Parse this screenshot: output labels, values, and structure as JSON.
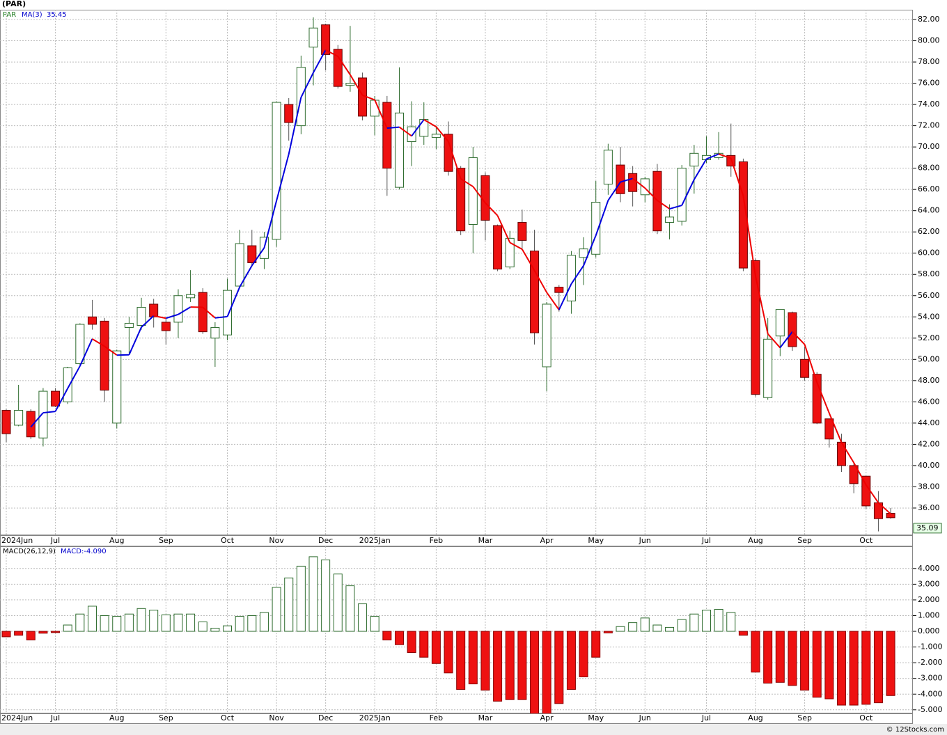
{
  "chart_data": [
    {
      "type": "candlestick",
      "title": "(PAR)",
      "name": "PAR",
      "categories": [
        "2024Jun",
        null,
        null,
        null,
        "Jul",
        null,
        null,
        null,
        null,
        "Aug",
        null,
        null,
        null,
        "Sep",
        null,
        null,
        null,
        null,
        "Oct",
        null,
        null,
        null,
        "Nov",
        null,
        null,
        null,
        "Dec",
        null,
        null,
        null,
        "2025Jan",
        null,
        null,
        null,
        null,
        "Feb",
        null,
        null,
        null,
        "Mar",
        null,
        null,
        null,
        null,
        "Apr",
        null,
        null,
        null,
        "May",
        null,
        null,
        null,
        "Jun",
        null,
        null,
        null,
        null,
        "Jul",
        null,
        null,
        null,
        "Aug",
        null,
        null,
        null,
        "Sep",
        null,
        null,
        null,
        null,
        "Oct",
        null,
        null
      ],
      "open": [
        45.2,
        43.8,
        45.1,
        42.6,
        47.0,
        46.0,
        49.6,
        54.0,
        53.6,
        44.0,
        53.0,
        53.2,
        55.2,
        53.5,
        53.5,
        55.8,
        56.3,
        52.0,
        52.3,
        56.9,
        60.7,
        59.5,
        61.3,
        74.0,
        72.0,
        79.4,
        81.5,
        79.2,
        75.8,
        76.5,
        72.9,
        74.2,
        66.2,
        70.5,
        71.0,
        70.9,
        71.2,
        68.0,
        62.7,
        67.3,
        62.6,
        58.7,
        62.9,
        60.2,
        49.3,
        56.8,
        55.5,
        59.6,
        59.9,
        66.5,
        68.3,
        67.5,
        65.5,
        67.7,
        62.9,
        63.0,
        68.2,
        68.8,
        69.0,
        69.2,
        68.6,
        59.3,
        46.4,
        52.2,
        54.4,
        50.0,
        48.6,
        44.4,
        42.2,
        40.0,
        39.0,
        36.5,
        35.5
      ],
      "high": [
        45.3,
        47.6,
        45.3,
        47.3,
        47.3,
        49.3,
        53.4,
        55.6,
        53.9,
        50.9,
        54.0,
        55.8,
        55.7,
        53.8,
        56.6,
        58.4,
        56.7,
        53.5,
        57.6,
        62.2,
        62.2,
        62.0,
        74.3,
        74.6,
        78.6,
        82.2,
        81.6,
        79.6,
        81.4,
        77.0,
        74.8,
        74.8,
        77.5,
        74.3,
        74.2,
        72.0,
        72.4,
        68.2,
        70.0,
        67.6,
        62.7,
        62.1,
        64.1,
        62.2,
        55.4,
        57.0,
        60.2,
        61.5,
        66.8,
        70.3,
        70.0,
        68.2,
        67.2,
        68.4,
        64.6,
        68.3,
        70.2,
        71.0,
        71.4,
        72.2,
        68.9,
        59.5,
        53.9,
        54.7,
        54.5,
        51.2,
        48.8,
        44.4,
        43.0,
        40.2,
        39.0,
        37.6,
        36.0
      ],
      "low": [
        42.2,
        43.7,
        42.5,
        41.8,
        45.5,
        45.8,
        49.5,
        52.8,
        46.0,
        43.5,
        50.6,
        52.8,
        53.0,
        51.4,
        52.0,
        55.4,
        52.4,
        49.3,
        51.8,
        56.7,
        58.8,
        58.5,
        60.6,
        70.6,
        71.2,
        75.8,
        77.2,
        75.5,
        75.2,
        72.5,
        71.1,
        65.4,
        66.0,
        68.2,
        70.2,
        69.8,
        67.3,
        61.7,
        60.0,
        61.2,
        58.3,
        58.5,
        60.4,
        51.4,
        47.0,
        54.5,
        54.3,
        57.0,
        59.6,
        65.5,
        64.8,
        64.4,
        64.8,
        61.8,
        61.3,
        62.6,
        65.6,
        68.5,
        68.8,
        67.2,
        58.3,
        46.5,
        46.2,
        50.3,
        50.8,
        48.0,
        43.9,
        41.7,
        39.4,
        37.4,
        35.9,
        33.8,
        35.0
      ],
      "close": [
        43.0,
        45.2,
        42.7,
        47.0,
        45.6,
        49.2,
        53.3,
        53.3,
        47.1,
        50.8,
        53.4,
        54.9,
        54.0,
        52.7,
        56.0,
        56.1,
        52.6,
        53.0,
        56.5,
        60.9,
        59.1,
        61.5,
        74.2,
        72.3,
        77.5,
        81.2,
        78.7,
        75.7,
        76.0,
        72.9,
        74.4,
        68.0,
        73.2,
        71.9,
        72.6,
        71.2,
        67.7,
        62.1,
        69.0,
        63.1,
        58.5,
        61.4,
        61.2,
        52.5,
        55.2,
        56.3,
        59.8,
        60.4,
        64.8,
        69.7,
        65.6,
        65.8,
        67.0,
        62.1,
        63.4,
        68.0,
        69.4,
        69.2,
        69.4,
        68.2,
        58.6,
        46.7,
        51.9,
        54.7,
        51.2,
        48.3,
        44.0,
        42.5,
        40.0,
        38.3,
        36.2,
        35.0,
        35.09
      ],
      "up_color": "#2d6b2d",
      "down_color": "#ee1111",
      "ma": {
        "name": "MA(3)",
        "up_color": "#0000dd",
        "down_color": "#ee0000",
        "values": [
          null,
          null,
          43.63,
          44.97,
          45.1,
          47.27,
          49.37,
          51.93,
          51.23,
          50.4,
          50.43,
          53.03,
          54.1,
          53.87,
          54.23,
          54.93,
          54.9,
          53.9,
          54.03,
          56.8,
          58.83,
          60.5,
          64.93,
          69.33,
          74.67,
          77.0,
          79.13,
          78.53,
          76.8,
          74.87,
          74.43,
          71.77,
          71.87,
          71.03,
          72.57,
          71.9,
          70.5,
          67.0,
          66.27,
          64.73,
          63.53,
          61.0,
          60.37,
          58.37,
          56.3,
          54.67,
          57.1,
          58.83,
          61.67,
          64.97,
          66.7,
          67.03,
          66.13,
          64.97,
          64.17,
          64.5,
          66.93,
          68.87,
          69.33,
          68.93,
          65.4,
          57.83,
          52.4,
          51.1,
          52.6,
          51.4,
          47.83,
          44.93,
          42.17,
          40.27,
          38.17,
          36.5,
          35.45
        ]
      },
      "ylim": [
        33.44,
        82.92
      ],
      "yticks": [
        {
          "value": 36,
          "label": "36.00"
        },
        {
          "value": 38,
          "label": "38.00"
        },
        {
          "value": 40,
          "label": "40.00"
        },
        {
          "value": 42,
          "label": "42.00"
        },
        {
          "value": 44,
          "label": "44.00"
        },
        {
          "value": 46,
          "label": "46.00"
        },
        {
          "value": 48,
          "label": "48.00"
        },
        {
          "value": 50,
          "label": "50.00"
        },
        {
          "value": 52,
          "label": "52.00"
        },
        {
          "value": 54,
          "label": "54.00"
        },
        {
          "value": 56,
          "label": "56.00"
        },
        {
          "value": 58,
          "label": "58.00"
        },
        {
          "value": 60,
          "label": "60.00"
        },
        {
          "value": 62,
          "label": "62.00"
        },
        {
          "value": 64,
          "label": "64.00"
        },
        {
          "value": 66,
          "label": "66.00"
        },
        {
          "value": 68,
          "label": "68.00"
        },
        {
          "value": 70,
          "label": "70.00"
        },
        {
          "value": 72,
          "label": "72.00"
        },
        {
          "value": 74,
          "label": "74.00"
        },
        {
          "value": 76,
          "label": "76.00"
        },
        {
          "value": 78,
          "label": "78.00"
        },
        {
          "value": 80,
          "label": "80.00"
        },
        {
          "value": 82,
          "label": "82.00"
        }
      ],
      "grid": true
    },
    {
      "type": "bar",
      "name": "MACD(26,12,9)",
      "readout": "MACD:-4.090",
      "categories": [
        "2024Jun",
        null,
        null,
        null,
        "Jul",
        null,
        null,
        null,
        null,
        "Aug",
        null,
        null,
        null,
        "Sep",
        null,
        null,
        null,
        null,
        "Oct",
        null,
        null,
        null,
        "Nov",
        null,
        null,
        null,
        "Dec",
        null,
        null,
        null,
        "2025Jan",
        null,
        null,
        null,
        null,
        "Feb",
        null,
        null,
        null,
        "Mar",
        null,
        null,
        null,
        null,
        "Apr",
        null,
        null,
        null,
        "May",
        null,
        null,
        null,
        "Jun",
        null,
        null,
        null,
        null,
        "Jul",
        null,
        null,
        null,
        "Aug",
        null,
        null,
        null,
        "Sep",
        null,
        null,
        null,
        null,
        "Oct",
        null,
        null
      ],
      "values": [
        -0.35,
        -0.25,
        -0.55,
        -0.12,
        -0.08,
        0.4,
        1.1,
        1.6,
        1.0,
        0.95,
        1.1,
        1.45,
        1.35,
        1.05,
        1.1,
        1.1,
        0.6,
        0.2,
        0.35,
        0.95,
        1.0,
        1.2,
        2.8,
        3.4,
        4.15,
        4.75,
        4.55,
        3.65,
        2.9,
        1.75,
        0.95,
        -0.55,
        -0.85,
        -1.35,
        -1.65,
        -2.05,
        -2.65,
        -3.7,
        -3.35,
        -3.75,
        -4.45,
        -4.35,
        -4.35,
        -5.3,
        -5.3,
        -4.6,
        -3.7,
        -2.9,
        -1.65,
        -0.1,
        0.3,
        0.55,
        0.85,
        0.4,
        0.25,
        0.75,
        1.1,
        1.35,
        1.4,
        1.2,
        -0.25,
        -2.6,
        -3.3,
        -3.25,
        -3.45,
        -3.75,
        -4.2,
        -4.3,
        -4.7,
        -4.7,
        -4.65,
        -4.55,
        -4.09
      ],
      "up_color": "#2d6b2d",
      "down_color": "#ee1111",
      "ylim": [
        -5.23,
        5.41
      ],
      "yticks": [
        {
          "value": -5,
          "label": "-5.000"
        },
        {
          "value": -4,
          "label": "-4.000"
        },
        {
          "value": -3,
          "label": "-3.000"
        },
        {
          "value": -2,
          "label": "-2.000"
        },
        {
          "value": -1,
          "label": "-1.000"
        },
        {
          "value": 0,
          "label": "0.000"
        },
        {
          "value": 1,
          "label": "1.000"
        },
        {
          "value": 2,
          "label": "2.000"
        },
        {
          "value": 3,
          "label": "3.000"
        },
        {
          "value": 4,
          "label": "4.000"
        }
      ],
      "grid": true
    }
  ],
  "footer": "© 12Stocks.com"
}
